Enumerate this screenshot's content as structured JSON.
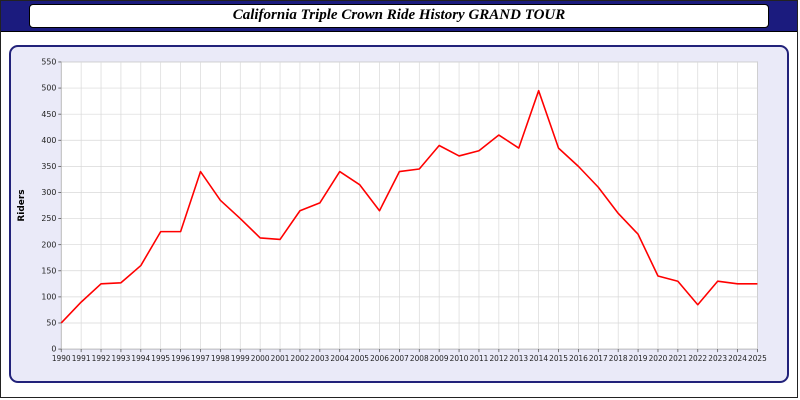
{
  "title": "California Triple Crown Ride History GRAND TOUR",
  "colors": {
    "titlebar_bg": "#1b1b7e",
    "panel_bg": "#eaeaf8",
    "panel_border": "#22227a",
    "line": "#ff0000",
    "grid": "#d8d8d8",
    "axis": "#555555",
    "tick_text": "#222222"
  },
  "chart_data": {
    "type": "line",
    "title": "California Triple Crown Ride History GRAND TOUR",
    "xlabel": "",
    "ylabel": "Riders",
    "ylim": [
      0,
      550
    ],
    "ytick_step": 50,
    "grid": true,
    "legend": "none",
    "x": [
      1990,
      1991,
      1992,
      1993,
      1994,
      1995,
      1996,
      1997,
      1998,
      1999,
      2000,
      2001,
      2002,
      2003,
      2004,
      2005,
      2006,
      2007,
      2008,
      2009,
      2010,
      2011,
      2012,
      2013,
      2014,
      2015,
      2016,
      2017,
      2018,
      2019,
      2020,
      2021,
      2022,
      2023,
      2024,
      2025
    ],
    "series": [
      {
        "name": "Riders",
        "values": [
          50,
          90,
          125,
          127,
          160,
          225,
          225,
          340,
          285,
          250,
          213,
          210,
          265,
          280,
          340,
          315,
          265,
          340,
          345,
          390,
          370,
          380,
          410,
          385,
          495,
          385,
          350,
          310,
          260,
          220,
          140,
          130,
          85,
          130,
          125,
          125
        ]
      }
    ]
  }
}
